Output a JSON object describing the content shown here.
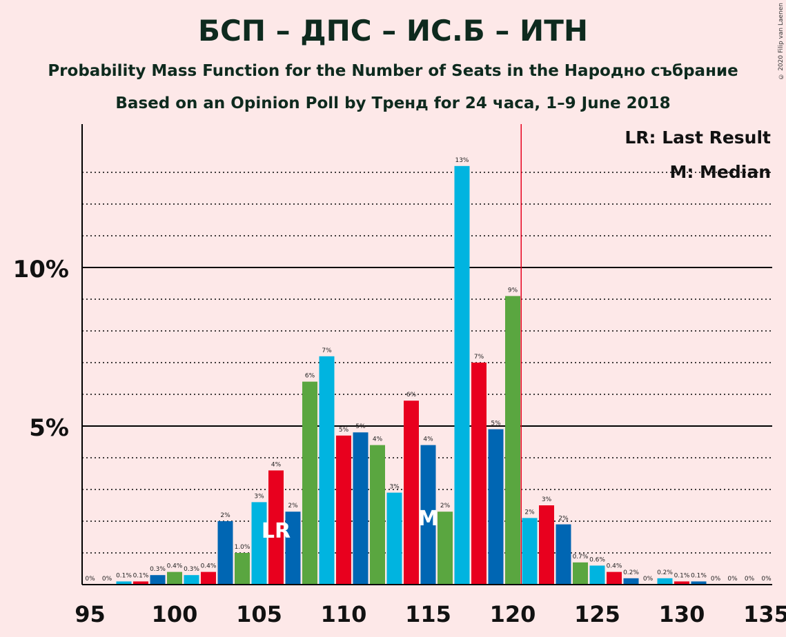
{
  "header": {
    "title": "БСП – ДПС – ИС.Б – ИТН",
    "subtitle": "Probability Mass Function for the Number of Seats in the Народно събрание",
    "source": "Based on an Opinion Poll by Тренд for 24 часа, 1–9 June 2018",
    "copyright": "© 2020 Filip van Laenen"
  },
  "legend": {
    "last_result": "LR: Last Result",
    "median": "M: Median"
  },
  "colors": {
    "background": "#fde8e8",
    "palette": [
      "#0066b3",
      "#5aa640",
      "#00b4e0",
      "#e8001e"
    ],
    "last_result_line": "#e8001e"
  },
  "chart_data": {
    "type": "bar",
    "x": [
      95,
      96,
      97,
      98,
      99,
      100,
      101,
      102,
      103,
      104,
      105,
      106,
      107,
      108,
      109,
      110,
      111,
      112,
      113,
      114,
      115,
      116,
      117,
      118,
      119,
      120,
      121,
      122,
      123,
      124,
      125,
      126,
      127,
      128,
      129,
      130,
      131,
      132,
      133,
      134,
      135
    ],
    "values": [
      0,
      0,
      0.1,
      0.1,
      0.3,
      0.4,
      0.3,
      0.4,
      2.0,
      1.0,
      2.6,
      3.6,
      2.3,
      6.4,
      7.2,
      4.7,
      4.8,
      4.4,
      2.9,
      5.8,
      4.4,
      2.3,
      13.2,
      7.0,
      4.9,
      9.1,
      2.1,
      2.5,
      1.9,
      0.7,
      0.6,
      0.4,
      0.2,
      0,
      0.2,
      0.1,
      0.1,
      0,
      0,
      0,
      0
    ],
    "labels": [
      "0%",
      "0%",
      "0.1%",
      "0.1%",
      "0.3%",
      "0.4%",
      "0.3%",
      "0.4%",
      "2%",
      "1.0%",
      "3%",
      "4%",
      "2%",
      "6%",
      "7%",
      "5%",
      "5%",
      "4%",
      "3%",
      "6%",
      "4%",
      "2%",
      "13%",
      "7%",
      "5%",
      "9%",
      "2%",
      "3%",
      "2%",
      "0.7%",
      "0.6%",
      "0.4%",
      "0.2%",
      "0%",
      "0.2%",
      "0.1%",
      "0.1%",
      "0%",
      "0%",
      "0%",
      "0%"
    ],
    "xticks": [
      "95",
      "100",
      "105",
      "110",
      "115",
      "120",
      "125",
      "130",
      "135"
    ],
    "yticks": [
      "5%",
      "10%"
    ],
    "ylim": [
      0,
      14.5
    ],
    "last_result": {
      "seat": 106,
      "label": "LR"
    },
    "median": {
      "seat": 115,
      "label": "M"
    },
    "majority_line": 120.5,
    "grid": true
  }
}
